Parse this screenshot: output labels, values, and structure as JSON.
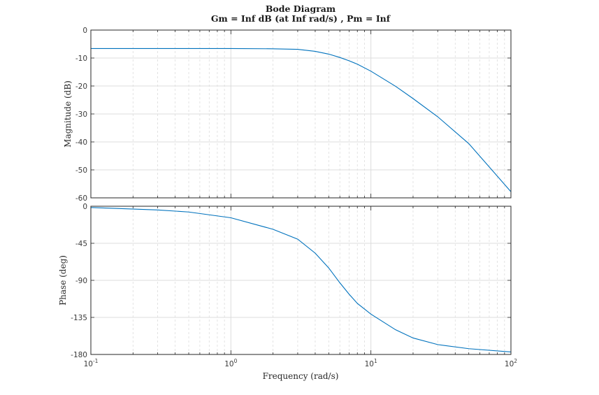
{
  "chart_data": {
    "type": "line",
    "title": "Bode Diagram",
    "subtitle": "Gm = Inf dB (at Inf rad/s) ,  Pm = Inf",
    "xlabel": "Frequency  (rad/s)",
    "x_scale": "log",
    "xlim": [
      0.1,
      100
    ],
    "x_ticks": [
      {
        "base": "10",
        "exp": "-1",
        "value": 0.1
      },
      {
        "base": "10",
        "exp": "0",
        "value": 1
      },
      {
        "base": "10",
        "exp": "1",
        "value": 10
      },
      {
        "base": "10",
        "exp": "2",
        "value": 100
      }
    ],
    "grid": true,
    "panels": [
      {
        "name": "magnitude",
        "ylabel": "Magnitude (dB)",
        "ylim": [
          -60,
          0
        ],
        "yticks": [
          0,
          -10,
          -20,
          -30,
          -40,
          -50,
          -60
        ],
        "series": [
          {
            "color": "#0072bd",
            "x": [
              0.1,
              1,
              2,
              3,
              4,
              5,
              6,
              7,
              8,
              10,
              15,
              20,
              30,
              50,
              100
            ],
            "y": [
              -6.6,
              -6.6,
              -6.7,
              -6.9,
              -7.6,
              -8.6,
              -9.8,
              -11.0,
              -12.2,
              -14.7,
              -20.1,
              -24.5,
              -31.0,
              -40.6,
              -57.8
            ]
          }
        ]
      },
      {
        "name": "phase",
        "ylabel": "Phase (deg)",
        "ylim": [
          -180,
          0
        ],
        "yticks": [
          0,
          -45,
          -90,
          -135,
          -180
        ],
        "series": [
          {
            "color": "#0072bd",
            "x": [
              0.1,
              0.3,
              0.5,
              1,
              2,
              3,
              4,
              5,
              6,
              7,
              8,
              10,
              15,
              20,
              30,
              50,
              100
            ],
            "y": [
              -1.5,
              -4.5,
              -7.0,
              -14.0,
              -28.0,
              -40.0,
              -57.0,
              -75.0,
              -93.0,
              -107.0,
              -118.0,
              -131.0,
              -150.0,
              -160.0,
              -168.0,
              -173.0,
              -177.0
            ]
          }
        ]
      }
    ]
  }
}
